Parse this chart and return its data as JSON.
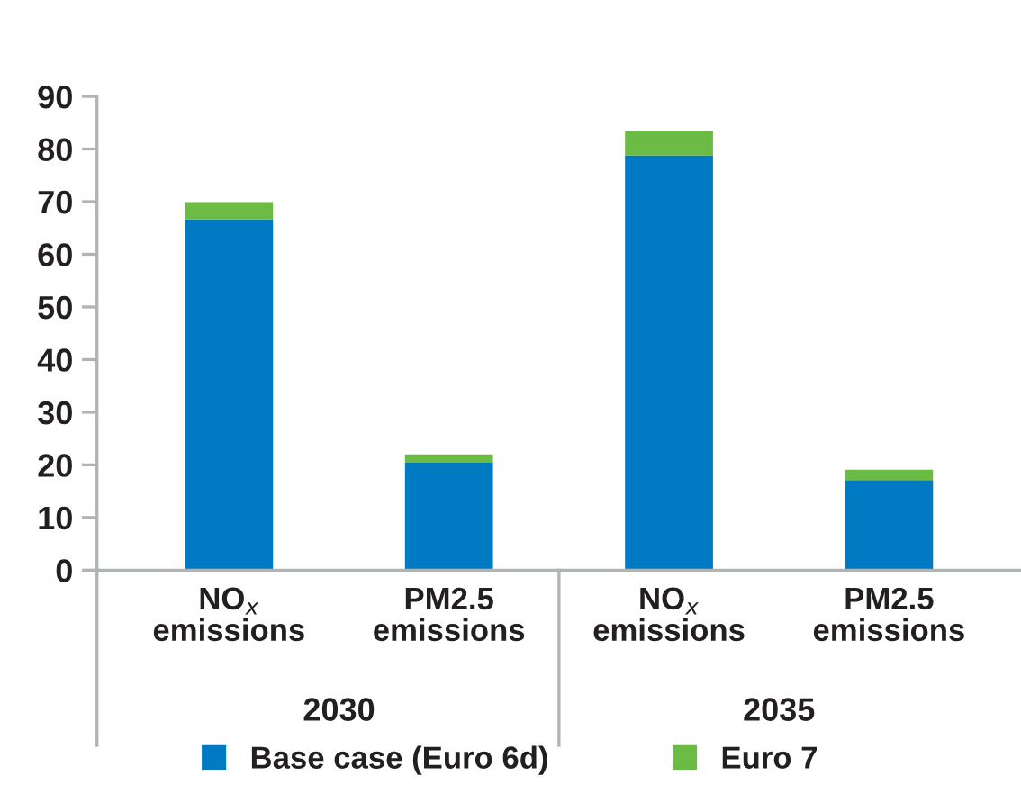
{
  "chart_data": {
    "type": "bar",
    "stacked": true,
    "categories": [
      "NO$_{x}$\nemissions",
      "PM2.5\nemissions",
      "NO$_{x}$\nemissions",
      "PM2.5\nemissions"
    ],
    "series": [
      {
        "name": "Base case (Euro 6d)",
        "color": "#007ac3",
        "values": [
          66.6,
          20.4,
          78.8,
          17.1
        ]
      },
      {
        "name": "Euro 7",
        "color": "#6cbb45",
        "values": [
          3.3,
          1.6,
          4.6,
          2.0
        ]
      }
    ],
    "ylim": [
      0,
      90
    ],
    "yticks": [
      0,
      10,
      20,
      30,
      40,
      50,
      60,
      70,
      80,
      90
    ],
    "annotations": [
      "2030",
      "2035"
    ],
    "grid": false,
    "legend": "bottom"
  }
}
